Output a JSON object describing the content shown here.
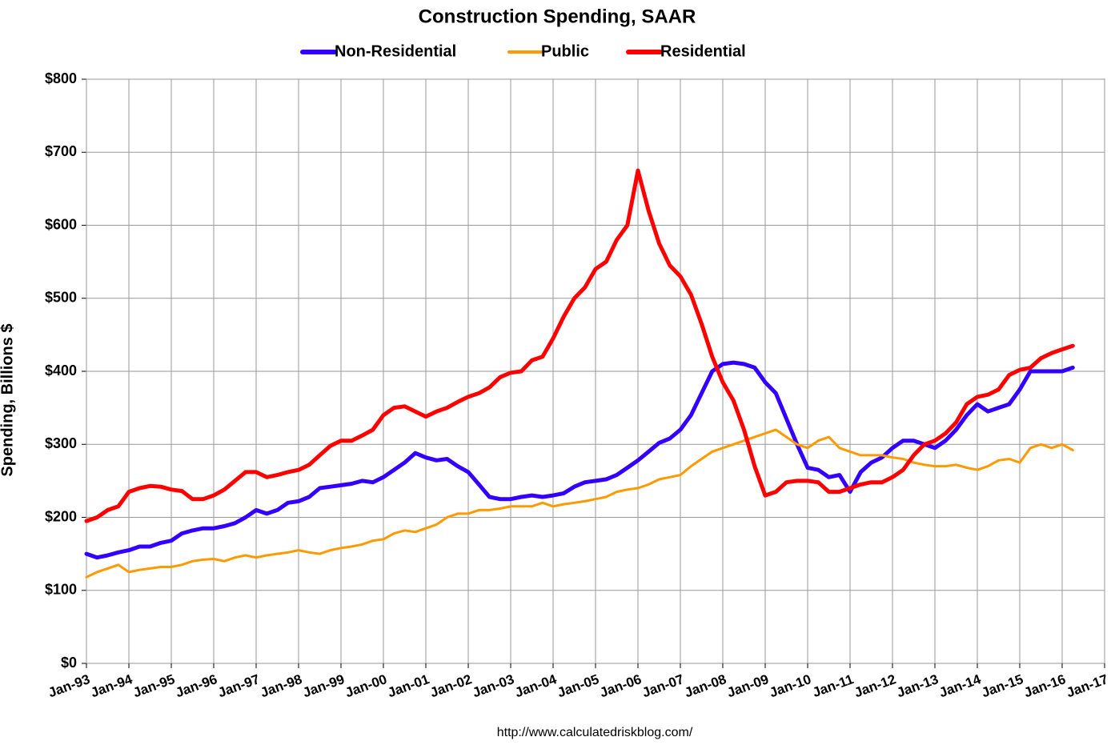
{
  "chart_data": {
    "type": "line",
    "title": "Construction Spending, SAAR",
    "ylabel": "Spending, Billions $",
    "source": "http://www.calculatedriskblog.com/",
    "legend": "top",
    "grid": true,
    "x": [
      1993,
      1993.25,
      1993.5,
      1993.75,
      1994,
      1994.25,
      1994.5,
      1994.75,
      1995,
      1995.25,
      1995.5,
      1995.75,
      1996,
      1996.25,
      1996.5,
      1996.75,
      1997,
      1997.25,
      1997.5,
      1997.75,
      1998,
      1998.25,
      1998.5,
      1998.75,
      1999,
      1999.25,
      1999.5,
      1999.75,
      2000,
      2000.25,
      2000.5,
      2000.75,
      2001,
      2001.25,
      2001.5,
      2001.75,
      2002,
      2002.25,
      2002.5,
      2002.75,
      2003,
      2003.25,
      2003.5,
      2003.75,
      2004,
      2004.25,
      2004.5,
      2004.75,
      2005,
      2005.25,
      2005.5,
      2005.75,
      2006,
      2006.25,
      2006.5,
      2006.75,
      2007,
      2007.25,
      2007.5,
      2007.75,
      2008,
      2008.25,
      2008.5,
      2008.75,
      2009,
      2009.25,
      2009.5,
      2009.75,
      2010,
      2010.25,
      2010.5,
      2010.75,
      2011,
      2011.25,
      2011.5,
      2011.75,
      2012,
      2012.25,
      2012.5,
      2012.75,
      2013,
      2013.25,
      2013.5,
      2013.75,
      2014,
      2014.25,
      2014.5,
      2014.75,
      2015,
      2015.25,
      2015.5,
      2015.75,
      2016,
      2016.25
    ],
    "series": [
      {
        "name": "Non-Residential",
        "color": "#3300ff",
        "width": 5,
        "values": [
          150,
          145,
          148,
          152,
          155,
          160,
          160,
          165,
          168,
          178,
          182,
          185,
          185,
          188,
          192,
          200,
          210,
          205,
          210,
          220,
          222,
          228,
          240,
          242,
          244,
          246,
          250,
          248,
          255,
          265,
          275,
          288,
          282,
          278,
          280,
          270,
          262,
          245,
          228,
          225,
          225,
          228,
          230,
          228,
          230,
          233,
          242,
          248,
          250,
          252,
          258,
          268,
          278,
          290,
          302,
          308,
          320,
          340,
          370,
          400,
          410,
          412,
          410,
          405,
          385,
          370,
          335,
          300,
          268,
          265,
          255,
          258,
          235,
          262,
          275,
          282,
          295,
          305,
          305,
          300,
          295,
          305,
          320,
          340,
          355,
          345,
          350,
          355,
          375,
          400,
          400,
          400,
          400,
          405
        ]
      },
      {
        "name": "Public",
        "color": "#ff9900",
        "width": 3,
        "values": [
          118,
          125,
          130,
          135,
          125,
          128,
          130,
          132,
          132,
          135,
          140,
          142,
          143,
          140,
          145,
          148,
          145,
          148,
          150,
          152,
          155,
          152,
          150,
          155,
          158,
          160,
          163,
          168,
          170,
          178,
          182,
          180,
          185,
          190,
          200,
          205,
          205,
          210,
          210,
          212,
          215,
          215,
          215,
          220,
          215,
          218,
          220,
          222,
          225,
          228,
          235,
          238,
          240,
          245,
          252,
          255,
          258,
          270,
          280,
          290,
          295,
          300,
          305,
          310,
          315,
          320,
          310,
          300,
          295,
          305,
          310,
          295,
          290,
          285,
          285,
          285,
          282,
          280,
          275,
          272,
          270,
          270,
          272,
          268,
          265,
          270,
          278,
          280,
          275,
          295,
          300,
          295,
          300,
          292
        ]
      },
      {
        "name": "Residential",
        "color": "#ff0000",
        "width": 5,
        "values": [
          195,
          200,
          210,
          215,
          235,
          240,
          243,
          242,
          238,
          236,
          225,
          225,
          230,
          238,
          250,
          262,
          262,
          255,
          258,
          262,
          265,
          272,
          285,
          298,
          305,
          305,
          312,
          320,
          340,
          350,
          352,
          345,
          338,
          345,
          350,
          358,
          365,
          370,
          378,
          392,
          398,
          400,
          415,
          420,
          445,
          475,
          500,
          515,
          540,
          550,
          580,
          600,
          675,
          620,
          575,
          545,
          530,
          505,
          465,
          420,
          385,
          360,
          320,
          270,
          230,
          235,
          248,
          250,
          250,
          248,
          235,
          235,
          240,
          245,
          248,
          248,
          255,
          265,
          285,
          300,
          305,
          315,
          330,
          355,
          365,
          368,
          375,
          395,
          402,
          405,
          418,
          425,
          430,
          435
        ]
      }
    ],
    "xlim": [
      1993,
      2017
    ],
    "xticks": [
      {
        "value": 1993,
        "label": "Jan-93"
      },
      {
        "value": 1994,
        "label": "Jan-94"
      },
      {
        "value": 1995,
        "label": "Jan-95"
      },
      {
        "value": 1996,
        "label": "Jan-96"
      },
      {
        "value": 1997,
        "label": "Jan-97"
      },
      {
        "value": 1998,
        "label": "Jan-98"
      },
      {
        "value": 1999,
        "label": "Jan-99"
      },
      {
        "value": 2000,
        "label": "Jan-00"
      },
      {
        "value": 2001,
        "label": "Jan-01"
      },
      {
        "value": 2002,
        "label": "Jan-02"
      },
      {
        "value": 2003,
        "label": "Jan-03"
      },
      {
        "value": 2004,
        "label": "Jan-04"
      },
      {
        "value": 2005,
        "label": "Jan-05"
      },
      {
        "value": 2006,
        "label": "Jan-06"
      },
      {
        "value": 2007,
        "label": "Jan-07"
      },
      {
        "value": 2008,
        "label": "Jan-08"
      },
      {
        "value": 2009,
        "label": "Jan-09"
      },
      {
        "value": 2010,
        "label": "Jan-10"
      },
      {
        "value": 2011,
        "label": "Jan-11"
      },
      {
        "value": 2012,
        "label": "Jan-12"
      },
      {
        "value": 2013,
        "label": "Jan-13"
      },
      {
        "value": 2014,
        "label": "Jan-14"
      },
      {
        "value": 2015,
        "label": "Jan-15"
      },
      {
        "value": 2016,
        "label": "Jan-16"
      },
      {
        "value": 2017,
        "label": "Jan-17"
      }
    ],
    "ylim": [
      0,
      800
    ],
    "yticks": [
      {
        "value": 0,
        "label": "$0"
      },
      {
        "value": 100,
        "label": "$100"
      },
      {
        "value": 200,
        "label": "$200"
      },
      {
        "value": 300,
        "label": "$300"
      },
      {
        "value": 400,
        "label": "$400"
      },
      {
        "value": 500,
        "label": "$500"
      },
      {
        "value": 600,
        "label": "$600"
      },
      {
        "value": 700,
        "label": "$700"
      },
      {
        "value": 800,
        "label": "$800"
      }
    ]
  }
}
